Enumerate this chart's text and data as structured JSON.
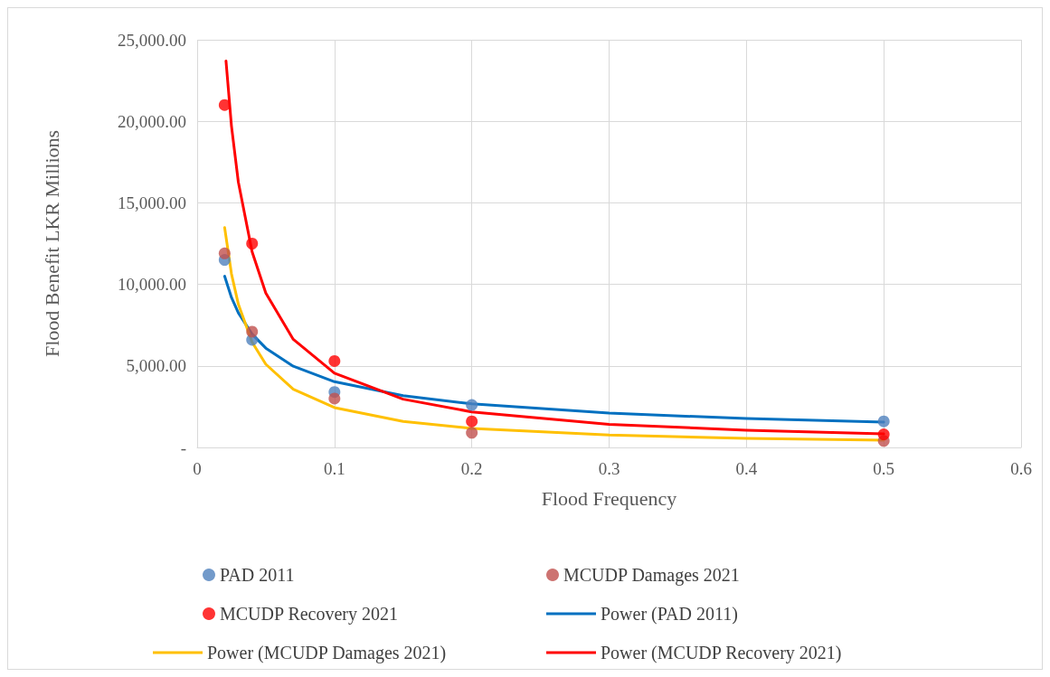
{
  "chart_data": {
    "type": "scatter",
    "xlabel": "Flood Frequency",
    "ylabel": "Flood Benefit LKR Millions",
    "xlim": [
      0,
      0.6
    ],
    "xticks": [
      0,
      0.1,
      0.2,
      0.3,
      0.4,
      0.5,
      0.6
    ],
    "ylim": [
      0,
      25000
    ],
    "yticks": [
      {
        "value": 0,
        "label": "-"
      },
      {
        "value": 5000,
        "label": "5,000.00"
      },
      {
        "value": 10000,
        "label": "10,000.00"
      },
      {
        "value": 15000,
        "label": "15,000.00"
      },
      {
        "value": 20000,
        "label": "20,000.00"
      },
      {
        "value": 25000,
        "label": "25,000.00"
      }
    ],
    "grid": true,
    "legend": "bottom",
    "marker": "circle",
    "x": [
      0.02,
      0.04,
      0.1,
      0.2,
      0.5
    ],
    "series": [
      {
        "name": "PAD 2011",
        "color": "#4f81bd",
        "values": [
          11500,
          6600,
          3400,
          2600,
          1600
        ]
      },
      {
        "name": "MCUDP Damages 2021",
        "color": "#c0504d",
        "values": [
          11900,
          7100,
          3000,
          900,
          400
        ]
      },
      {
        "name": "MCUDP Recovery 2021",
        "color": "#ff0000",
        "values": [
          21000,
          12500,
          5300,
          1600,
          800
        ]
      },
      {
        "name": "Power (PAD 2011)",
        "type": "line",
        "marker": "none",
        "color": "#0070c0",
        "x": [
          0.02,
          0.025,
          0.03,
          0.04,
          0.05,
          0.07,
          0.1,
          0.15,
          0.2,
          0.3,
          0.4,
          0.5
        ],
        "values": [
          10500,
          9190,
          8250,
          6950,
          6090,
          4980,
          4030,
          3170,
          2670,
          2100,
          1770,
          1550
        ]
      },
      {
        "name": "Power (MCUDP Damages 2021)",
        "type": "line",
        "marker": "none",
        "color": "#ffc000",
        "x": [
          0.02,
          0.025,
          0.03,
          0.04,
          0.05,
          0.07,
          0.1,
          0.15,
          0.2,
          0.3,
          0.4,
          0.5
        ],
        "values": [
          13490,
          10640,
          8780,
          6460,
          5100,
          3570,
          2440,
          1590,
          1170,
          760,
          560,
          440
        ]
      },
      {
        "name": "Power (MCUDP Recovery 2021)",
        "type": "line",
        "marker": "none",
        "color": "#ff0000",
        "x": [
          0.021,
          0.025,
          0.03,
          0.04,
          0.05,
          0.07,
          0.1,
          0.15,
          0.2,
          0.3,
          0.4,
          0.5
        ],
        "values": [
          23700,
          19700,
          16270,
          12000,
          9470,
          6630,
          4550,
          2960,
          2180,
          1420,
          1050,
          830
        ]
      }
    ]
  }
}
